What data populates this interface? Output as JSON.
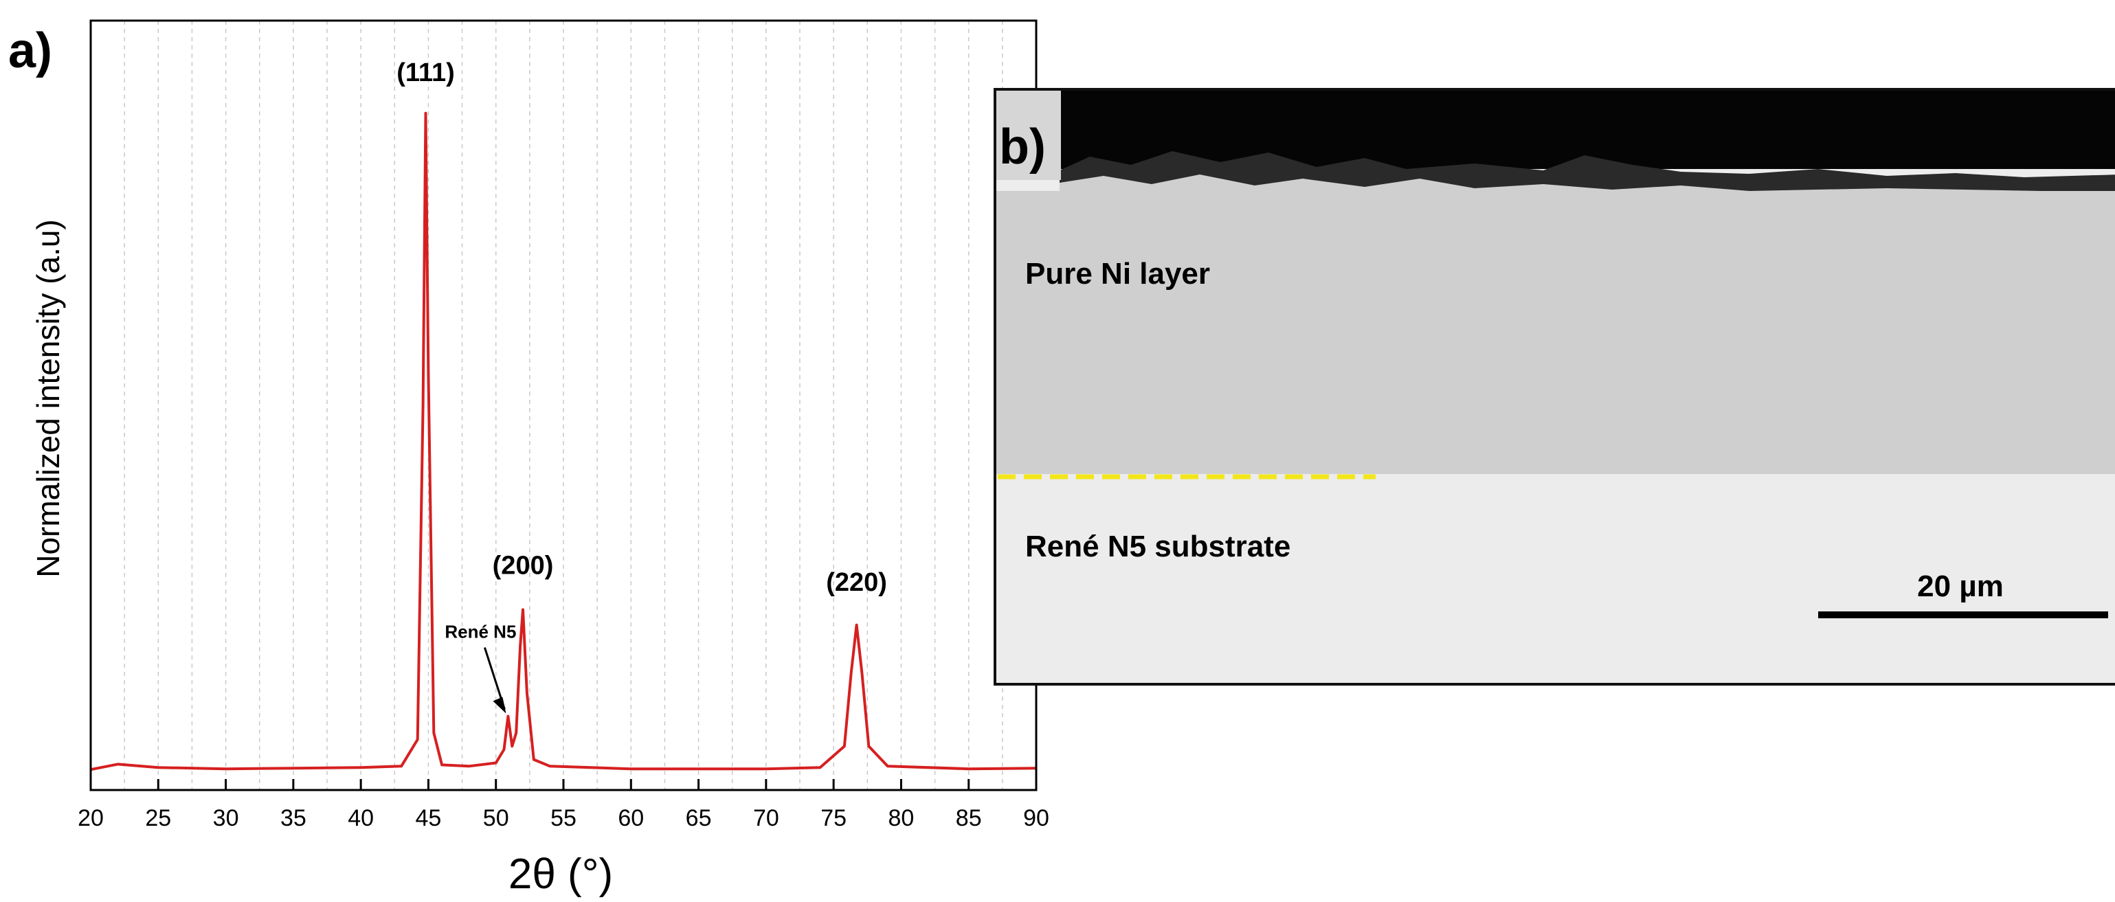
{
  "panel_a": {
    "label": "a)",
    "chart_data": {
      "type": "line",
      "xlabel": "2θ (°)",
      "ylabel": "Normalized intensity (a.u)",
      "xlim": [
        20,
        90
      ],
      "x_ticks": [
        "20",
        "25",
        "30",
        "35",
        "40",
        "45",
        "50",
        "55",
        "60",
        "65",
        "70",
        "75",
        "80",
        "85",
        "90"
      ],
      "grid": "vertical dashed",
      "color": "#d62020",
      "series": [
        {
          "x": [
            20,
            22,
            25,
            30,
            35,
            40,
            43,
            44.2,
            44.6,
            44.8,
            45.0,
            45.4,
            46,
            48,
            50,
            50.6,
            50.9,
            51.2,
            51.5,
            51.8,
            52.0,
            52.3,
            52.8,
            54,
            60,
            65,
            70,
            74,
            75.8,
            76.3,
            76.7,
            77.1,
            77.6,
            79,
            85,
            90
          ],
          "y": [
            0.005,
            0.013,
            0.008,
            0.006,
            0.007,
            0.008,
            0.01,
            0.05,
            0.55,
            0.99,
            0.6,
            0.06,
            0.012,
            0.01,
            0.015,
            0.035,
            0.085,
            0.04,
            0.06,
            0.19,
            0.245,
            0.12,
            0.02,
            0.01,
            0.006,
            0.006,
            0.006,
            0.008,
            0.04,
            0.15,
            0.222,
            0.15,
            0.04,
            0.01,
            0.006,
            0.007
          ]
        }
      ],
      "annotations": [
        {
          "text": "(111)",
          "x": 44.8,
          "y": 1.03
        },
        {
          "text": "(200)",
          "x": 52.0,
          "y": 0.29
        },
        {
          "text": "(220)",
          "x": 76.7,
          "y": 0.265
        },
        {
          "text": "René N5",
          "x": 50.9,
          "y": 0.085,
          "arrow": true
        }
      ]
    }
  },
  "panel_b": {
    "label": "b)",
    "layer_label": "Pure Ni layer",
    "substrate_label": "René N5 substrate",
    "scale_bar": "20 µm",
    "interface_color": "#f2e61a"
  }
}
